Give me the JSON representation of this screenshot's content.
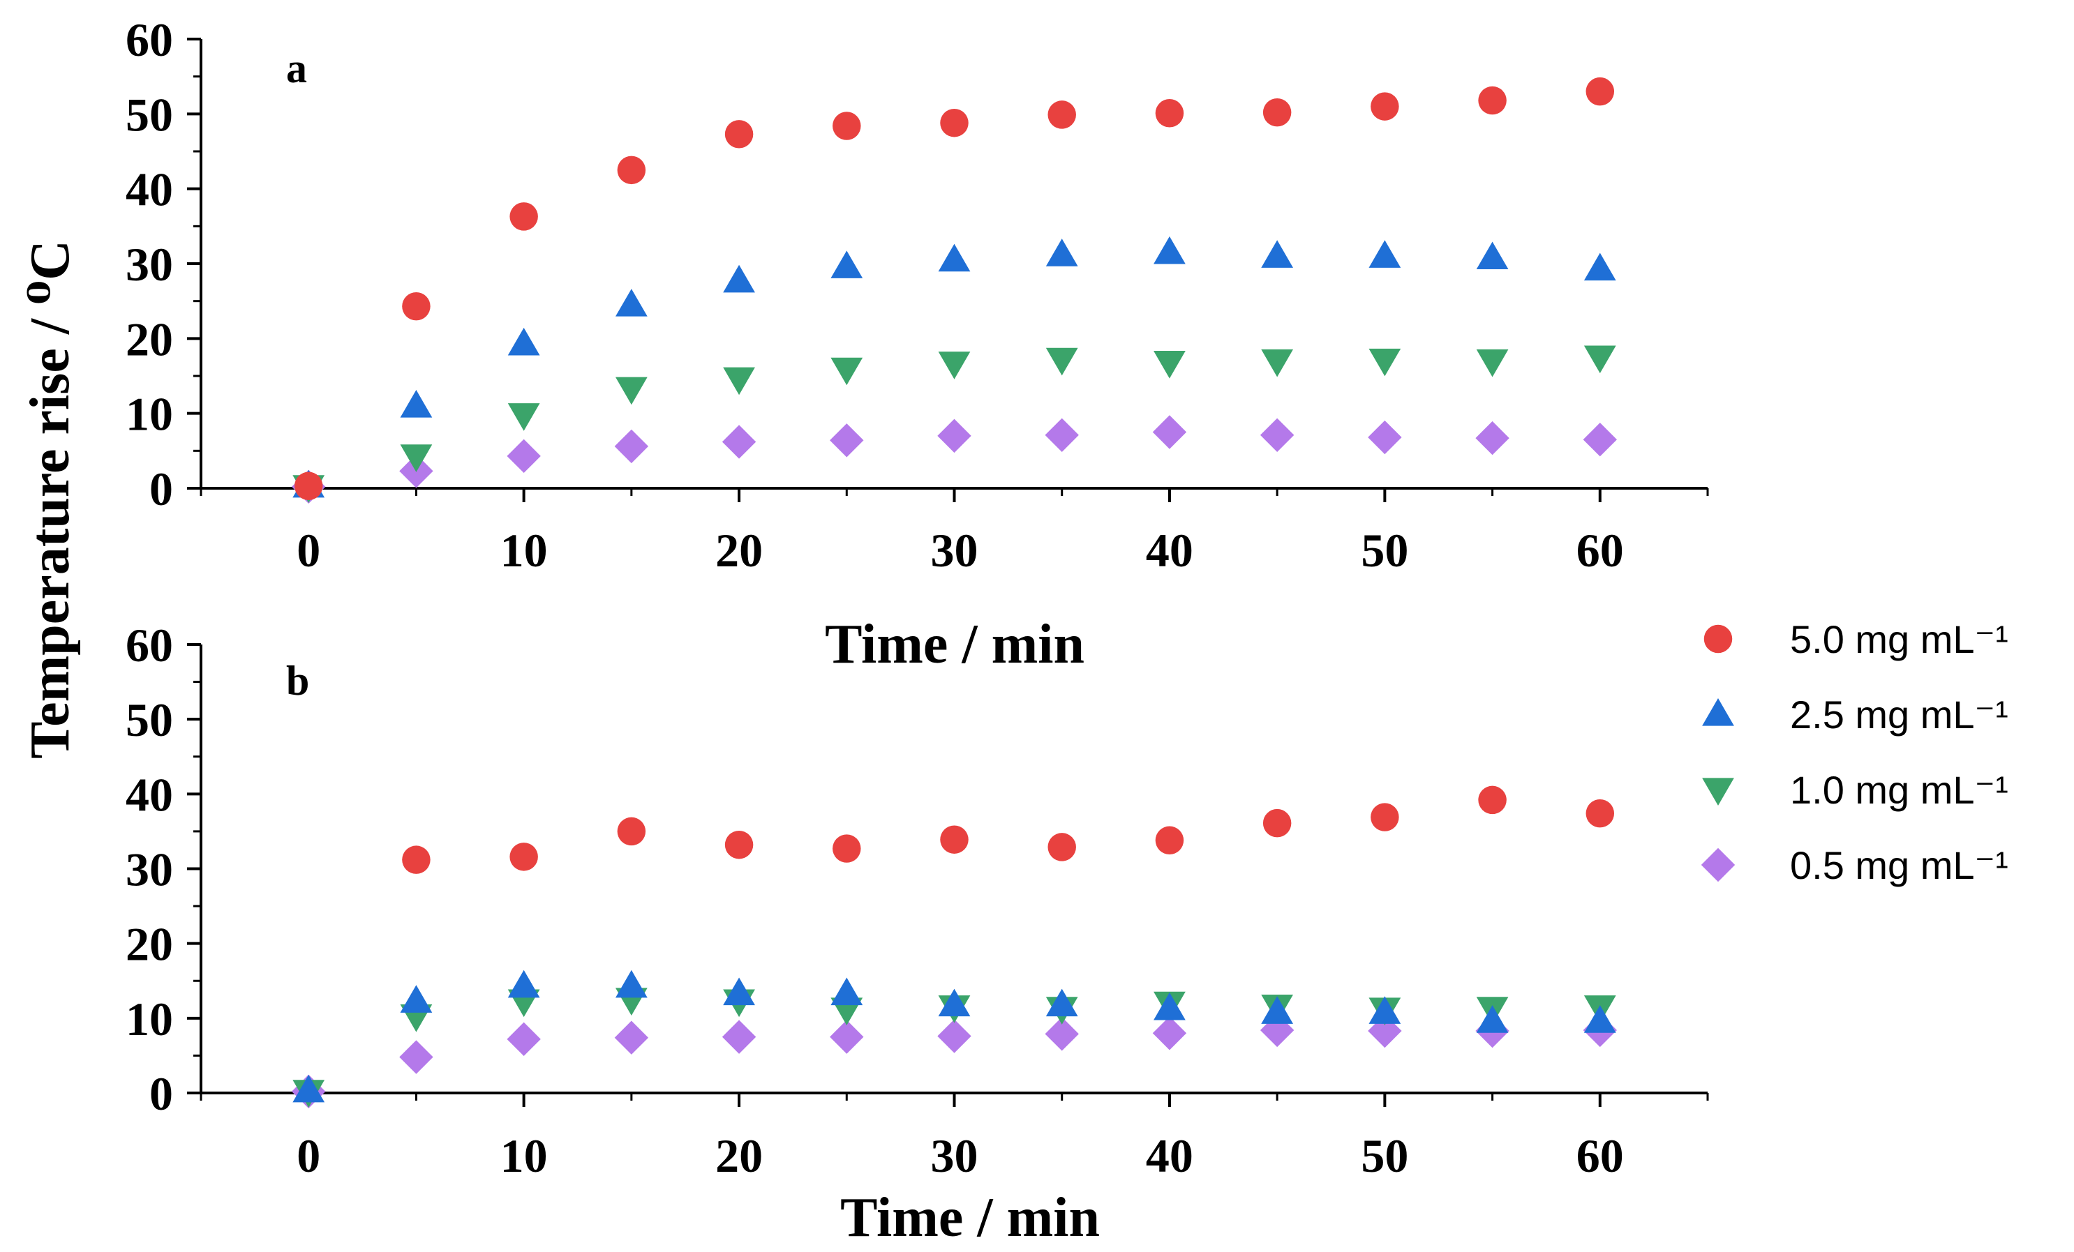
{
  "chart_data": [
    {
      "panel": "a",
      "type": "scatter",
      "xlabel": "Time / min",
      "ylabel": "Temperature rise / ⁰C",
      "xlim": [
        -5,
        65
      ],
      "ylim": [
        0,
        60
      ],
      "xticks": [
        "0",
        "10",
        "20",
        "30",
        "40",
        "50",
        "60"
      ],
      "yticks": [
        "0",
        "10",
        "20",
        "30",
        "40",
        "50",
        "60"
      ],
      "x": [
        0,
        5,
        10,
        15,
        20,
        25,
        30,
        35,
        40,
        45,
        50,
        55,
        60
      ],
      "series": [
        {
          "name": "5.0 mg mL⁻¹",
          "marker": "circle",
          "color": "#e8413f",
          "values": [
            0.3,
            24.3,
            36.3,
            42.5,
            47.3,
            48.4,
            48.8,
            49.9,
            50.1,
            50.2,
            51.0,
            51.8,
            53.0
          ]
        },
        {
          "name": "2.5 mg mL⁻¹",
          "marker": "triangle-up",
          "color": "#1f6fd6",
          "values": [
            0.3,
            11.0,
            19.3,
            24.5,
            27.7,
            29.6,
            30.5,
            31.2,
            31.5,
            31.0,
            31.0,
            30.8,
            29.3
          ]
        },
        {
          "name": "1.0 mg mL⁻¹",
          "marker": "triangle-down",
          "color": "#3ba46a",
          "values": [
            0.2,
            4.3,
            9.8,
            13.3,
            14.6,
            15.9,
            16.7,
            17.2,
            16.8,
            17.0,
            17.1,
            17.0,
            17.5
          ]
        },
        {
          "name": "0.5 mg mL⁻¹",
          "marker": "diamond",
          "color": "#b479ea",
          "values": [
            0.2,
            2.3,
            4.3,
            5.6,
            6.2,
            6.4,
            7.0,
            7.1,
            7.5,
            7.1,
            6.8,
            6.7,
            6.5
          ]
        }
      ]
    },
    {
      "panel": "b",
      "type": "scatter",
      "xlabel": "Time / min",
      "ylabel": "Temperature rise / ⁰C",
      "xlim": [
        -5,
        65
      ],
      "ylim": [
        0,
        60
      ],
      "xticks": [
        "0",
        "10",
        "20",
        "30",
        "40",
        "50",
        "60"
      ],
      "yticks": [
        "0",
        "10",
        "20",
        "30",
        "40",
        "50",
        "60"
      ],
      "x": [
        0,
        5,
        10,
        15,
        20,
        25,
        30,
        35,
        40,
        45,
        50,
        55,
        60
      ],
      "series": [
        {
          "name": "5.0 mg mL⁻¹",
          "marker": "circle",
          "color": "#e8413f",
          "values": [
            null,
            31.2,
            31.6,
            35.0,
            33.2,
            32.7,
            33.9,
            32.9,
            33.8,
            36.1,
            36.9,
            39.2,
            37.4
          ]
        },
        {
          "name": "2.5 mg mL⁻¹",
          "marker": "triangle-up",
          "color": "#1f6fd6",
          "values": [
            0.3,
            12.3,
            14.3,
            14.3,
            13.3,
            13.3,
            11.8,
            11.8,
            11.3,
            10.8,
            10.8,
            9.6,
            9.6
          ]
        },
        {
          "name": "1.0 mg mL⁻¹",
          "marker": "triangle-down",
          "color": "#3ba46a",
          "values": [
            0.2,
            10.3,
            12.3,
            12.5,
            12.3,
            11.2,
            11.5,
            11.3,
            12.0,
            11.6,
            11.2,
            11.3,
            11.5
          ]
        },
        {
          "name": "0.5 mg mL⁻¹",
          "marker": "diamond",
          "color": "#b479ea",
          "values": [
            0.2,
            4.8,
            7.2,
            7.4,
            7.5,
            7.5,
            7.6,
            7.9,
            8.0,
            8.4,
            8.3,
            8.3,
            8.4
          ]
        }
      ]
    }
  ],
  "legend": {
    "placement": "right",
    "items": [
      {
        "label": "5.0 mg mL⁻¹",
        "marker": "circle",
        "color": "#e8413f"
      },
      {
        "label": "2.5 mg mL⁻¹",
        "marker": "triangle-up",
        "color": "#1f6fd6"
      },
      {
        "label": "1.0 mg mL⁻¹",
        "marker": "triangle-down",
        "color": "#3ba46a"
      },
      {
        "label": "0.5 mg mL⁻¹",
        "marker": "diamond",
        "color": "#b479ea"
      }
    ]
  },
  "shared_ylabel": "Temperature rise / ⁰C"
}
